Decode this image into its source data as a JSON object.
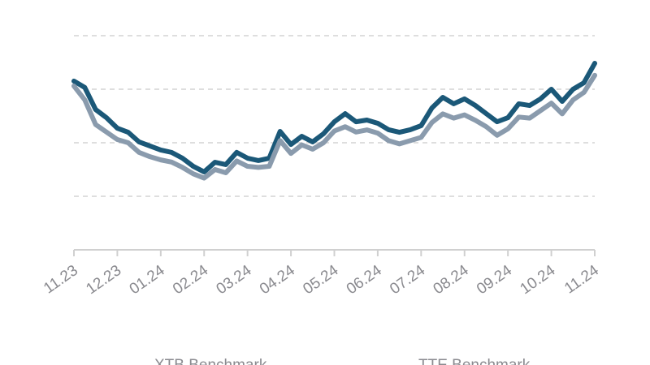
{
  "chart_data": {
    "type": "line",
    "x": [
      0,
      0.25,
      0.5,
      0.75,
      1,
      1.25,
      1.5,
      1.75,
      2,
      2.25,
      2.5,
      2.75,
      3,
      3.25,
      3.5,
      3.75,
      4,
      4.25,
      4.5,
      4.75,
      5,
      5.25,
      5.5,
      5.75,
      6,
      6.25,
      6.5,
      6.75,
      7,
      7.25,
      7.5,
      7.75,
      8,
      8.25,
      8.5,
      8.75,
      9,
      9.25,
      9.5,
      9.75,
      10,
      10.25,
      10.5,
      10.75,
      11,
      11.25,
      11.5,
      11.75,
      12
    ],
    "series": [
      {
        "name": "XTB Benchmark",
        "color": "#1b5878",
        "values": [
          78.8,
          75.8,
          65.5,
          61.7,
          56.8,
          54.9,
          50.4,
          48.5,
          46.6,
          45.5,
          42.8,
          39.0,
          36.4,
          40.9,
          39.8,
          45.5,
          42.8,
          41.7,
          42.8,
          55.3,
          49.2,
          53.0,
          50.4,
          54.2,
          59.8,
          63.6,
          59.8,
          60.6,
          59.1,
          56.1,
          54.9,
          56.1,
          58.0,
          66.3,
          71.2,
          68.2,
          70.5,
          67.4,
          63.6,
          59.8,
          61.7,
          68.2,
          67.4,
          70.5,
          75.0,
          69.3,
          75.0,
          78.0,
          87.1
        ]
      },
      {
        "name": "TTE Benchmark",
        "color": "#8a9bad",
        "values": [
          76.5,
          70.0,
          58.5,
          55.0,
          51.5,
          50.0,
          45.5,
          43.5,
          42.0,
          41.0,
          38.5,
          35.5,
          33.5,
          37.5,
          36.0,
          41.5,
          39.0,
          38.5,
          39.0,
          51.0,
          45.0,
          49.0,
          47.0,
          50.0,
          55.5,
          57.5,
          55.0,
          56.0,
          54.5,
          51.0,
          49.5,
          51.0,
          52.5,
          59.5,
          63.5,
          61.5,
          63.0,
          60.5,
          57.5,
          53.5,
          56.5,
          62.0,
          61.5,
          65.0,
          68.5,
          63.5,
          70.0,
          73.5,
          81.5
        ]
      }
    ],
    "xlim": [
      0,
      12
    ],
    "xticks": [
      {
        "value": 0,
        "label": "11.23"
      },
      {
        "value": 1,
        "label": "12.23"
      },
      {
        "value": 2,
        "label": "01.24"
      },
      {
        "value": 3,
        "label": "02.24"
      },
      {
        "value": 4,
        "label": "03.24"
      },
      {
        "value": 5,
        "label": "04.24"
      },
      {
        "value": 6,
        "label": "05.24"
      },
      {
        "value": 7,
        "label": "06.24"
      },
      {
        "value": 8,
        "label": "07.24"
      },
      {
        "value": 9,
        "label": "08.24"
      },
      {
        "value": 10,
        "label": "09.24"
      },
      {
        "value": 11,
        "label": "10.24"
      },
      {
        "value": 12,
        "label": "11.24"
      }
    ],
    "ylim": [
      0,
      100
    ],
    "yticks": [
      25,
      50,
      75,
      100
    ],
    "grid": true
  }
}
